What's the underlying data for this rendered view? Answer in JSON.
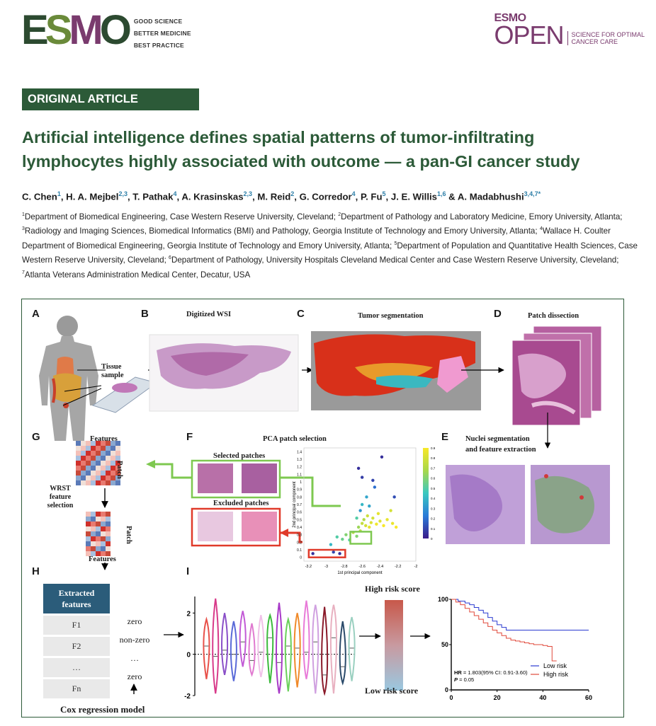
{
  "header": {
    "esmo_logo": {
      "letters": [
        "E",
        "S",
        "M",
        "O"
      ],
      "colors": [
        "#2c4a30",
        "#6a8a3a",
        "#7a3b6e",
        "#2c4a30"
      ],
      "tagline": [
        "GOOD SCIENCE",
        "BETTER MEDICINE",
        "BEST PRACTICE"
      ]
    },
    "open_logo": {
      "esmo": "ESMO",
      "open": "OPEN",
      "tagline": [
        "SCIENCE FOR OPTIMAL",
        "CANCER CARE"
      ]
    }
  },
  "badge": "ORIGINAL ARTICLE",
  "title_lines": [
    "Artificial intelligence defines spatial patterns of tumor-infiltrating",
    "lymphocytes highly associated with outcome — a pan-GI cancer study"
  ],
  "authors": [
    {
      "name": "C. Chen",
      "sup": "1",
      "sep": ", "
    },
    {
      "name": "H. A. Mejbel",
      "sup": "2,3",
      "sep": ", "
    },
    {
      "name": "T. Pathak",
      "sup": "4",
      "sep": ", "
    },
    {
      "name": "A. Krasinskas",
      "sup": "2,3",
      "sep": ", "
    },
    {
      "name": "M. Reid",
      "sup": "2",
      "sep": ", "
    },
    {
      "name": "G. Corredor",
      "sup": "4",
      "sep": ", "
    },
    {
      "name": "P. Fu",
      "sup": "5",
      "sep": ", "
    },
    {
      "name": "J. E. Willis",
      "sup": "1,6",
      "sep": " & "
    },
    {
      "name": "A. Madabhushi",
      "sup": "3,4,7*",
      "sep": ""
    }
  ],
  "affiliations": [
    {
      "sup": "1",
      "text": "Department of Biomedical Engineering, Case Western Reserve University, Cleveland; "
    },
    {
      "sup": "2",
      "text": "Department of Pathology and Laboratory Medicine, Emory University, Atlanta; "
    },
    {
      "sup": "3",
      "text": "Radiology and Imaging Sciences, Biomedical Informatics (BMI) and Pathology, Georgia Institute of Technology and Emory University, Atlanta; "
    },
    {
      "sup": "4",
      "text": "Wallace H. Coulter Department of Biomedical Engineering, Georgia Institute of Technology and Emory University, Atlanta; "
    },
    {
      "sup": "5",
      "text": "Department of Population and Quantitative Health Sciences, Case Western Reserve University, Cleveland; "
    },
    {
      "sup": "6",
      "text": "Department of Pathology, University Hospitals Cleveland Medical Center and Case Western Reserve University, Cleveland; "
    },
    {
      "sup": "7",
      "text": "Atlanta Veterans Administration Medical Center, Decatur, USA"
    }
  ],
  "figure": {
    "panels": {
      "a": "A",
      "b": "B",
      "c": "C",
      "d": "D",
      "e": "E",
      "f": "F",
      "g": "G",
      "h": "H",
      "i": "I"
    },
    "labels": {
      "tissue_sample": [
        "Tissue",
        "sample"
      ],
      "digitized_wsi": "Digitized  WSI",
      "tumor_segmentation": "Tumor segmentation",
      "patch_dissection": "Patch dissection",
      "nuclei_segmentation": [
        "Nuclei segmentation",
        "and feature extraction"
      ],
      "pca_patch_selection": "PCA patch selection",
      "selected_patches": "Selected patches",
      "excluded_patches": "Excluded patches",
      "features_top": "Features",
      "patch_top": "Patch",
      "wrst": [
        "WRST",
        "feature",
        "selection"
      ],
      "patch_bottom": "Patch",
      "features_bottom": "Features",
      "cox_model": "Cox regression model",
      "high_risk_score": "High risk score",
      "low_risk_score": "Low risk score"
    },
    "feature_table": {
      "header": [
        "Extracted",
        "features"
      ],
      "rows": [
        {
          "feature": "F1",
          "coef": "zero"
        },
        {
          "feature": "F2",
          "coef": "non-zero"
        },
        {
          "feature": "…",
          "coef": "…"
        },
        {
          "feature": "Fn",
          "coef": "zero"
        }
      ]
    }
  },
  "chart_data": [
    {
      "type": "scatter",
      "title": "PCA patch selection",
      "xlabel": "1st principal component",
      "ylabel": "2nd principal component",
      "xlim": [
        -3.25,
        -2.0
      ],
      "ylim": [
        -0.05,
        1.45
      ],
      "xticks": [
        "-3.2",
        "-3",
        "-2.8",
        "-2.6",
        "-2.4",
        "-2.2",
        "-2"
      ],
      "xtick_values": [
        -3.2,
        -3.0,
        -2.8,
        -2.6,
        -2.4,
        -2.2,
        -2.0
      ],
      "yticks": [
        "0",
        "0.1",
        "0.2",
        "0.3",
        "0.4",
        "0.5",
        "0.6",
        "0.7",
        "0.8",
        "0.9",
        "1",
        "1.1",
        "1.2",
        "1.3",
        "1.4"
      ],
      "ytick_values": [
        0,
        0.1,
        0.2,
        0.3,
        0.4,
        0.5,
        0.6,
        0.7,
        0.8,
        0.9,
        1.0,
        1.1,
        1.2,
        1.3,
        1.4
      ],
      "colorbar": {
        "ticks": [
          "0",
          "0.1",
          "0.2",
          "0.3",
          "0.4",
          "0.5",
          "0.6",
          "0.7",
          "0.8",
          "0.9"
        ],
        "range": [
          0,
          0.9
        ]
      },
      "points": [
        {
          "x": -3.15,
          "y": 0.05,
          "c": 0.05
        },
        {
          "x": -2.92,
          "y": 0.07,
          "c": 0.1
        },
        {
          "x": -2.85,
          "y": 0.05,
          "c": 0.05
        },
        {
          "x": -2.95,
          "y": 0.17,
          "c": 0.4
        },
        {
          "x": -2.88,
          "y": 0.27,
          "c": 0.5
        },
        {
          "x": -2.82,
          "y": 0.24,
          "c": 0.55
        },
        {
          "x": -2.78,
          "y": 0.3,
          "c": 0.6
        },
        {
          "x": -2.74,
          "y": 0.23,
          "c": 0.5
        },
        {
          "x": -2.7,
          "y": 0.33,
          "c": 0.7
        },
        {
          "x": -2.66,
          "y": 0.28,
          "c": 0.6
        },
        {
          "x": -2.64,
          "y": 0.4,
          "c": 0.65
        },
        {
          "x": -2.62,
          "y": 0.35,
          "c": 0.72
        },
        {
          "x": -2.6,
          "y": 0.45,
          "c": 0.75
        },
        {
          "x": -2.58,
          "y": 0.5,
          "c": 0.7
        },
        {
          "x": -2.56,
          "y": 0.42,
          "c": 0.8
        },
        {
          "x": -2.54,
          "y": 0.55,
          "c": 0.78
        },
        {
          "x": -2.52,
          "y": 0.4,
          "c": 0.85
        },
        {
          "x": -2.5,
          "y": 0.46,
          "c": 0.82
        },
        {
          "x": -2.48,
          "y": 0.52,
          "c": 0.8
        },
        {
          "x": -2.44,
          "y": 0.44,
          "c": 0.88
        },
        {
          "x": -2.42,
          "y": 0.58,
          "c": 0.85
        },
        {
          "x": -2.4,
          "y": 0.48,
          "c": 0.82
        },
        {
          "x": -2.36,
          "y": 0.42,
          "c": 0.9
        },
        {
          "x": -2.32,
          "y": 0.5,
          "c": 0.85
        },
        {
          "x": -2.28,
          "y": 0.62,
          "c": 0.8
        },
        {
          "x": -2.26,
          "y": 0.45,
          "c": 0.86
        },
        {
          "x": -2.22,
          "y": 0.4,
          "c": 0.9
        },
        {
          "x": -2.6,
          "y": 0.7,
          "c": 0.4
        },
        {
          "x": -2.55,
          "y": 0.8,
          "c": 0.35
        },
        {
          "x": -2.62,
          "y": 0.62,
          "c": 0.3
        },
        {
          "x": -2.66,
          "y": 0.52,
          "c": 0.5
        },
        {
          "x": -2.52,
          "y": 0.68,
          "c": 0.35
        },
        {
          "x": -2.64,
          "y": 1.18,
          "c": 0.05
        },
        {
          "x": -2.6,
          "y": 1.06,
          "c": 0.08
        },
        {
          "x": -2.38,
          "y": 1.33,
          "c": 0.05
        },
        {
          "x": -2.48,
          "y": 1.02,
          "c": 0.1
        },
        {
          "x": -2.24,
          "y": 0.8,
          "c": 0.12
        },
        {
          "x": -2.46,
          "y": 0.93,
          "c": 0.2
        }
      ]
    },
    {
      "type": "violin",
      "ylim": [
        -2,
        2.8
      ],
      "yticks": [
        "-2",
        "0",
        "2"
      ],
      "ytick_values": [
        -2,
        0,
        2
      ],
      "series": [
        {
          "color": "#e8514a",
          "center": 0.4,
          "lo": -1.2,
          "hi": 1.7
        },
        {
          "color": "#d83a8a",
          "center": -0.1,
          "lo": -1.9,
          "hi": 2.7
        },
        {
          "color": "#8a4fc8",
          "center": 0.2,
          "lo": -1.0,
          "hi": 2.0
        },
        {
          "color": "#5a6ad8",
          "center": 0.0,
          "lo": -1.3,
          "hi": 1.6
        },
        {
          "color": "#c25ad6",
          "center": 0.6,
          "lo": -0.6,
          "hi": 2.1
        },
        {
          "color": "#e07ad0",
          "center": -0.3,
          "lo": -1.0,
          "hi": 1.5
        },
        {
          "color": "#f0c0e8",
          "center": 0.1,
          "lo": -1.1,
          "hi": 1.9
        },
        {
          "color": "#3cba3c",
          "center": 0.8,
          "lo": -1.4,
          "hi": 1.9
        },
        {
          "color": "#a83ac8",
          "center": -0.4,
          "lo": -1.9,
          "hi": 2.5
        },
        {
          "color": "#6ad05a",
          "center": 0.4,
          "lo": -1.8,
          "hi": 1.7
        },
        {
          "color": "#f08a2a",
          "center": 0.3,
          "lo": -1.6,
          "hi": 2.0
        },
        {
          "color": "#e87ad8",
          "center": 0.1,
          "lo": -1.2,
          "hi": 2.6
        },
        {
          "color": "#d0a0e0",
          "center": 0.6,
          "lo": -1.9,
          "hi": 2.4
        },
        {
          "color": "#8a1a2a",
          "center": -1.0,
          "lo": -1.9,
          "hi": 2.3
        },
        {
          "color": "#e8b0c0",
          "center": 0.8,
          "lo": -1.9,
          "hi": 2.4
        },
        {
          "color": "#2a4a6a",
          "center": -0.6,
          "lo": -1.4,
          "hi": 1.6
        },
        {
          "color": "#9ad0c0",
          "center": 0.3,
          "lo": -1.3,
          "hi": 1.8
        }
      ]
    },
    {
      "type": "line",
      "xlim": [
        0,
        60
      ],
      "ylim": [
        0,
        100
      ],
      "xticks": [
        "0",
        "20",
        "40",
        "60"
      ],
      "xtick_values": [
        0,
        20,
        40,
        60
      ],
      "yticks": [
        "0",
        "50",
        "100"
      ],
      "ytick_values": [
        0,
        50,
        100
      ],
      "annotations": {
        "hr_label": "HR",
        "hr_text": " = 1.803(95% CI: 0.91-3.60)",
        "p_label": "P",
        "p_text": " = 0.05"
      },
      "legend_position": "bottom-right",
      "series": [
        {
          "name": "Low risk",
          "color": "#2a3ad0",
          "x": [
            0,
            3,
            6,
            8,
            10,
            12,
            14,
            16,
            18,
            20,
            22,
            24,
            60
          ],
          "y": [
            100,
            98,
            96,
            94,
            91,
            88,
            85,
            80,
            76,
            72,
            69,
            66,
            66
          ]
        },
        {
          "name": "High risk",
          "color": "#e0483a",
          "x": [
            0,
            2,
            4,
            6,
            8,
            10,
            12,
            14,
            16,
            18,
            20,
            22,
            24,
            26,
            28,
            30,
            32,
            34,
            36,
            38,
            40,
            42,
            44,
            46
          ],
          "y": [
            100,
            97,
            94,
            90,
            86,
            82,
            78,
            74,
            70,
            66,
            63,
            60,
            57,
            55,
            54,
            53,
            52,
            51,
            50,
            50,
            49,
            48,
            32,
            32
          ]
        }
      ]
    }
  ]
}
